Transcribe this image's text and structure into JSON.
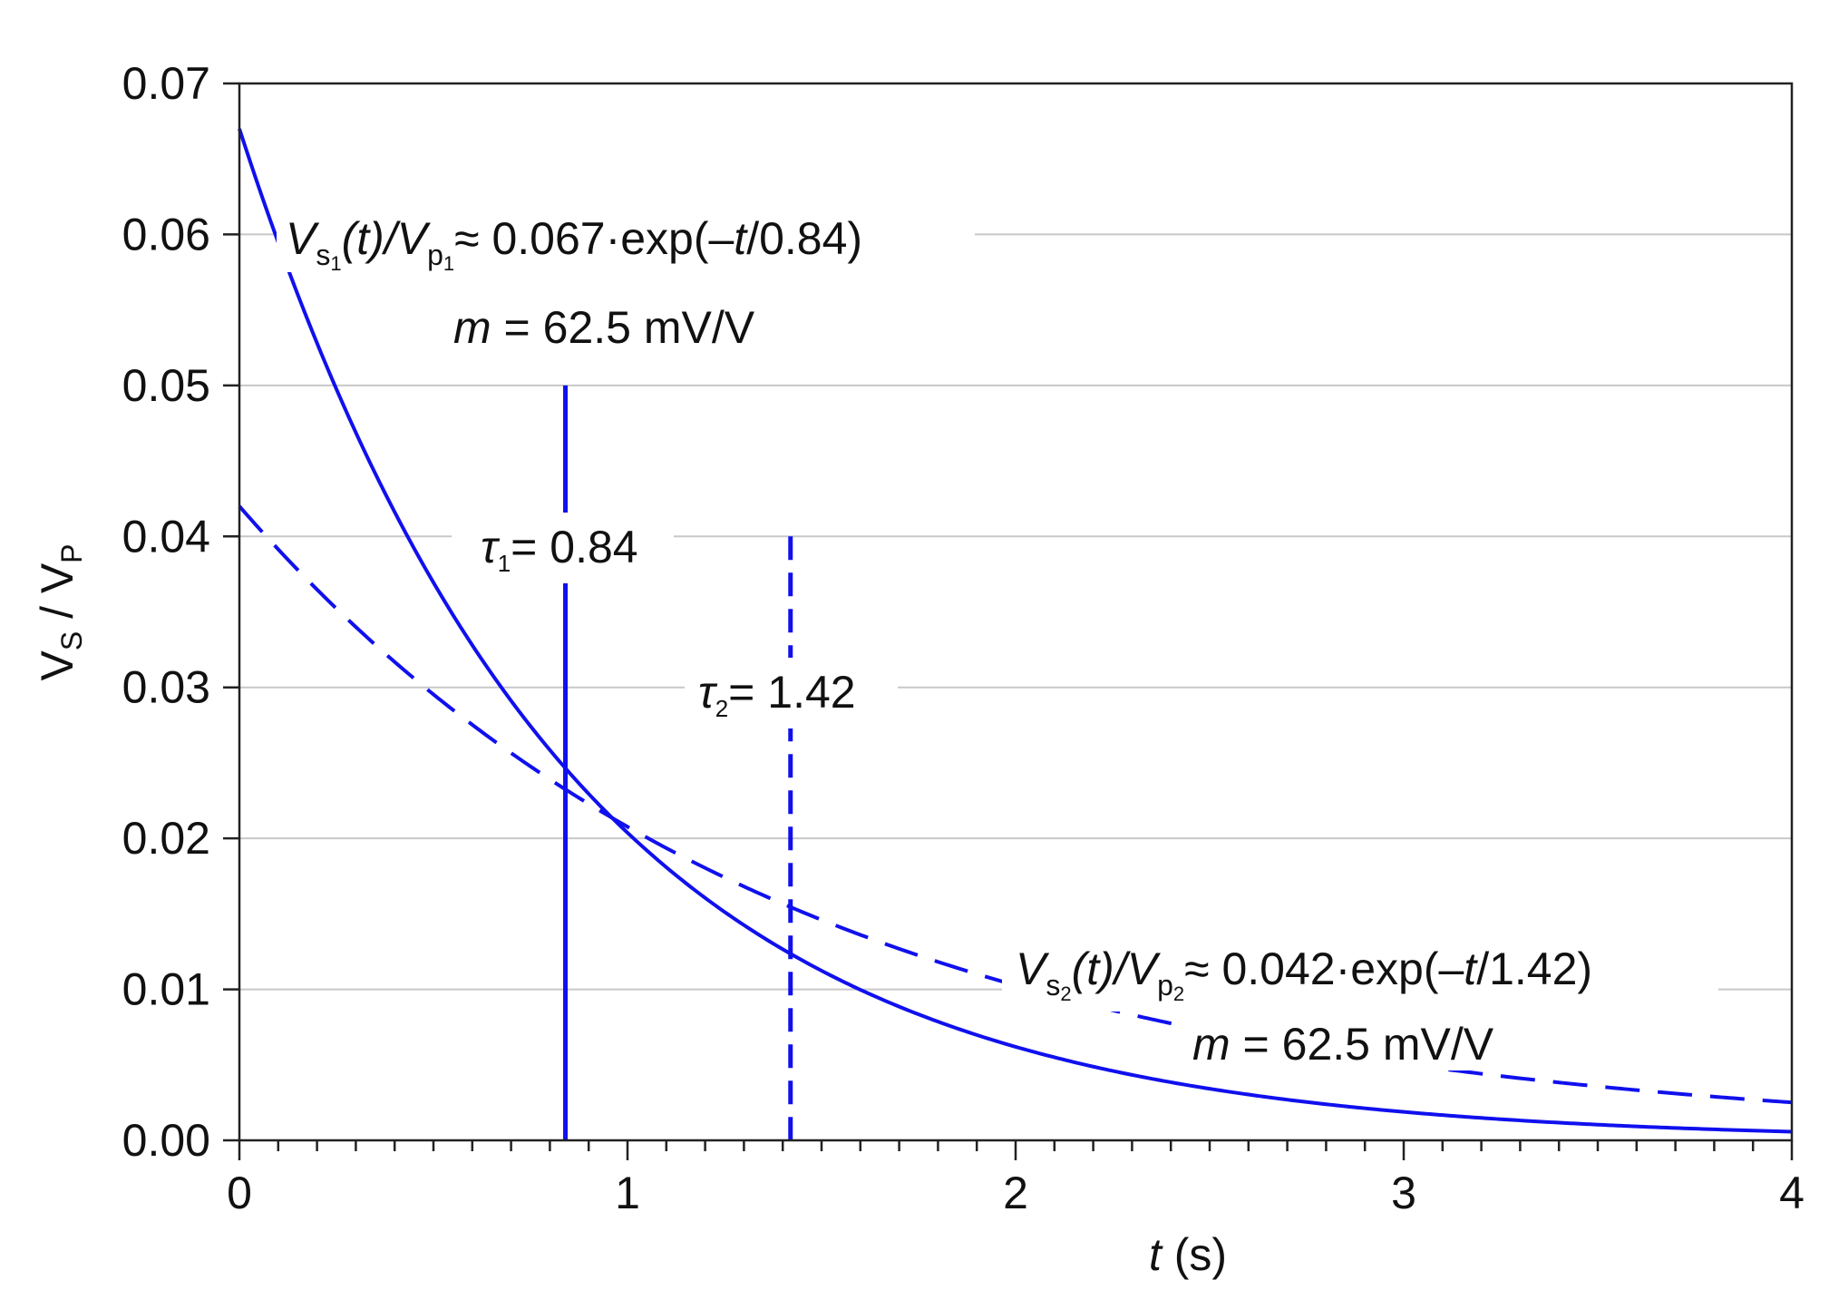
{
  "chart_data": {
    "type": "line",
    "title": "",
    "xlabel": "t (s)",
    "ylabel": "VS / VP",
    "xlim": [
      0,
      4
    ],
    "ylim": [
      0,
      0.07
    ],
    "grid": "horizontal",
    "x_ticks": [
      "0",
      "1",
      "2",
      "3",
      "4"
    ],
    "y_ticks": [
      "0.00",
      "0.01",
      "0.02",
      "0.03",
      "0.04",
      "0.05",
      "0.06",
      "0.07"
    ],
    "series": [
      {
        "name": "Vs1(t)/Vp1",
        "amplitude": 0.067,
        "tau": 0.84,
        "style": "solid",
        "color": "#1010ee"
      },
      {
        "name": "Vs2(t)/Vp2",
        "amplitude": 0.042,
        "tau": 1.42,
        "style": "dashed",
        "color": "#1010ee"
      }
    ],
    "markers": [
      {
        "name": "tau1",
        "x": 0.84,
        "y_top": 0.05,
        "style": "solid"
      },
      {
        "name": "tau2",
        "x": 1.42,
        "y_top": 0.04,
        "style": "dashed"
      }
    ],
    "annotations": {
      "eq1": {
        "v": "V",
        "sub_s": "s",
        "sub_1": "1",
        "t_part": "(t)/",
        "p": "p",
        "rhs": "≈ 0.067·exp(–",
        "t": "t",
        "tail": "/0.84)"
      },
      "m1": {
        "m": "m",
        "rest": " = 62.5 mV/V"
      },
      "tau1": {
        "sym": "τ",
        "sub": "1",
        "rest": "= 0.84"
      },
      "tau2": {
        "sym": "τ",
        "sub": "2",
        "rest": "= 1.42"
      },
      "eq2": {
        "v": "V",
        "sub_s": "s",
        "sub_2": "2",
        "t_part": "(t)/",
        "p": "p",
        "rhs": "≈ 0.042·exp(–",
        "t": "t",
        "tail": "/1.42)"
      },
      "m2": {
        "m": "m",
        "rest": " = 62.5 mV/V"
      }
    }
  }
}
